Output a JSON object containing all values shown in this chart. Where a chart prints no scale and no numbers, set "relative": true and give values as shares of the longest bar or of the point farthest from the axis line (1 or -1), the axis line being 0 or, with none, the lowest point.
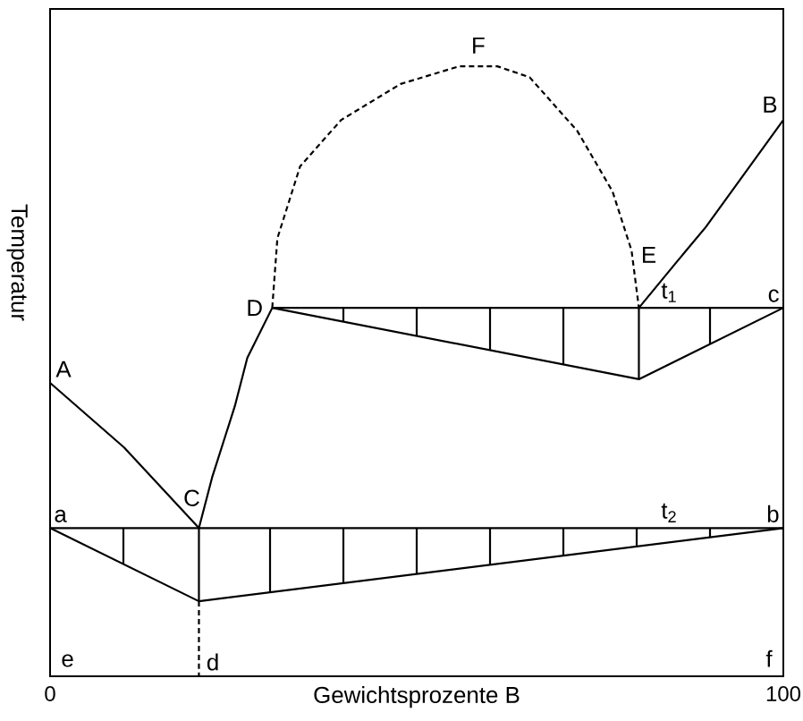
{
  "chart_data": {
    "type": "line",
    "relative": true,
    "xlabel": "Gewichtsprozente B",
    "ylabel": "Temperatur",
    "xlim": [
      0,
      100
    ],
    "xticks": [
      0,
      100
    ],
    "marker": "none",
    "line_style": "solid",
    "series": [
      {
        "color": "#000000",
        "x": [
          0,
          10.1,
          20.3
        ],
        "values": [
          0.481,
          0.375,
          0.243
        ]
      },
      {
        "color": "#000000",
        "x": [
          20.3,
          20.3,
          22.1,
          25.2,
          26.9,
          30.3
        ],
        "values": [
          0.123,
          0.243,
          0.326,
          0.443,
          0.522,
          0.604
        ]
      },
      {
        "color": "#000000",
        "x": [
          80.3,
          85.3,
          89.4,
          100
        ],
        "values": [
          0.604,
          0.677,
          0.736,
          0.912
        ]
      },
      {
        "color": "#000000",
        "line_style": "dashed",
        "x": [
          30.3,
          31,
          34.1,
          39.7,
          47.8,
          55.8,
          61,
          65.4,
          71.9,
          76.7,
          79.3,
          80.3
        ],
        "values": [
          0.604,
          0.718,
          0.836,
          0.912,
          0.971,
          1,
          1,
          0.982,
          0.894,
          0.795,
          0.698,
          0.604
        ]
      },
      {
        "color": "#000000",
        "x": [
          30.3,
          100
        ],
        "values": [
          0.604,
          0.604
        ]
      },
      {
        "color": "#000000",
        "x": [
          30.3,
          80.3,
          100
        ],
        "values": [
          0.604,
          0.487,
          0.604
        ]
      },
      {
        "color": "#000000",
        "x": [
          40,
          40
        ],
        "values": [
          0.604,
          0.581
        ]
      },
      {
        "color": "#000000",
        "x": [
          50,
          50
        ],
        "values": [
          0.604,
          0.558
        ]
      },
      {
        "color": "#000000",
        "x": [
          60,
          60
        ],
        "values": [
          0.604,
          0.534
        ]
      },
      {
        "color": "#000000",
        "x": [
          70,
          70
        ],
        "values": [
          0.604,
          0.511
        ]
      },
      {
        "color": "#000000",
        "x": [
          80.3,
          80.3
        ],
        "values": [
          0.604,
          0.487
        ]
      },
      {
        "color": "#000000",
        "x": [
          90,
          90
        ],
        "values": [
          0.604,
          0.545
        ]
      },
      {
        "color": "#000000",
        "x": [
          0,
          100
        ],
        "values": [
          0.243,
          0.243
        ]
      },
      {
        "color": "#000000",
        "x": [
          0,
          20.3,
          100
        ],
        "values": [
          0.243,
          0.123,
          0.243
        ]
      },
      {
        "color": "#000000",
        "x": [
          10,
          10
        ],
        "values": [
          0.243,
          0.185
        ]
      },
      {
        "color": "#000000",
        "x": [
          30,
          30
        ],
        "values": [
          0.243,
          0.138
        ]
      },
      {
        "color": "#000000",
        "x": [
          40,
          40
        ],
        "values": [
          0.243,
          0.153
        ]
      },
      {
        "color": "#000000",
        "x": [
          50,
          50
        ],
        "values": [
          0.243,
          0.168
        ]
      },
      {
        "color": "#000000",
        "x": [
          60,
          60
        ],
        "values": [
          0.243,
          0.183
        ]
      },
      {
        "color": "#000000",
        "x": [
          70,
          70
        ],
        "values": [
          0.243,
          0.198
        ]
      },
      {
        "color": "#000000",
        "x": [
          80,
          80
        ],
        "values": [
          0.243,
          0.213
        ]
      },
      {
        "color": "#000000",
        "x": [
          90,
          90
        ],
        "values": [
          0.243,
          0.228
        ]
      },
      {
        "color": "#000000",
        "line_style": "dashed",
        "x": [
          20.3,
          20.3
        ],
        "values": [
          0.123,
          0
        ]
      }
    ],
    "annotations": [
      {
        "text": "A",
        "x": 0,
        "y": 0.481
      },
      {
        "text": "B",
        "x": 100,
        "y": 0.912
      },
      {
        "text": "C",
        "x": 20.3,
        "y": 0.243
      },
      {
        "text": "D",
        "x": 30.3,
        "y": 0.604
      },
      {
        "text": "E",
        "x": 80.3,
        "y": 0.604
      },
      {
        "text": "F",
        "x": 58.4,
        "y": 1
      },
      {
        "text": "t$_{1}$",
        "x": 90,
        "y": 0.604
      },
      {
        "text": "c",
        "x": 100,
        "y": 0.604
      },
      {
        "text": "a",
        "x": 0,
        "y": 0.243
      },
      {
        "text": "t$_{2}$",
        "x": 90,
        "y": 0.243
      },
      {
        "text": "b",
        "x": 100,
        "y": 0.243
      },
      {
        "text": "d",
        "x": 20.3,
        "y": 0
      },
      "e",
      "f"
    ]
  }
}
